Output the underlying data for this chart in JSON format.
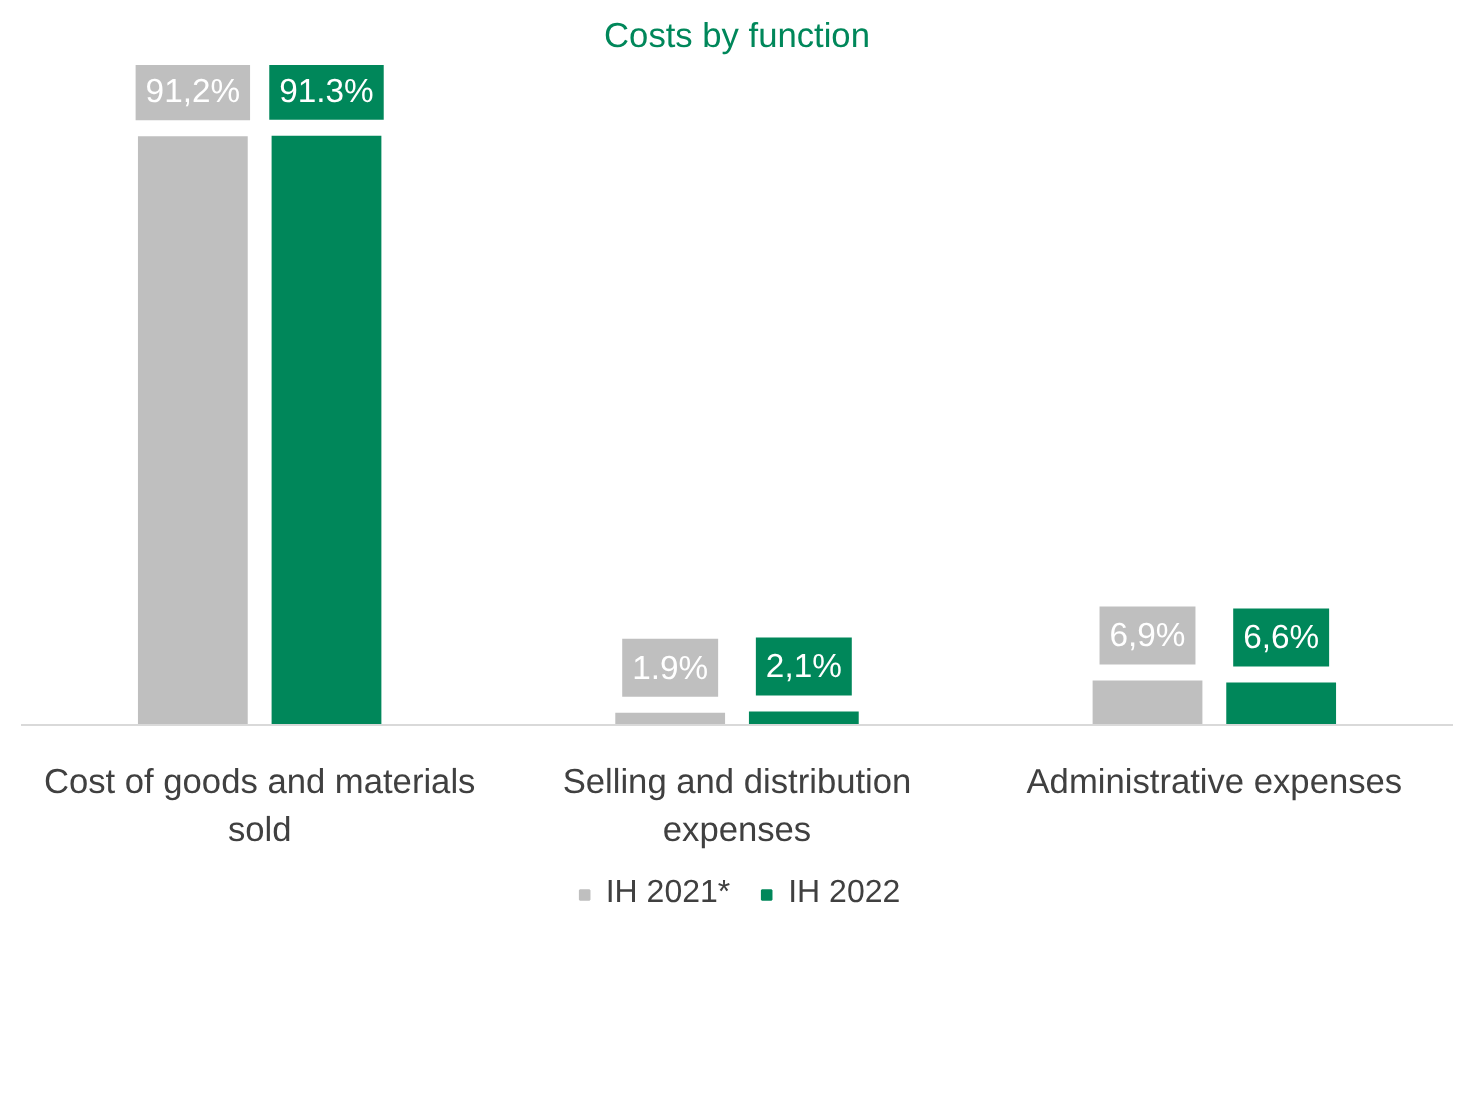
{
  "chart_data": {
    "type": "bar",
    "title": "Costs by function",
    "categories": [
      "Cost of goods and materials sold",
      "Selling and distribution expenses",
      "Administrative expenses"
    ],
    "series": [
      {
        "name": "IH 2021*",
        "color": "#bfbfbf",
        "values": [
          91.2,
          1.9,
          6.9
        ],
        "value_labels": [
          "91,2%",
          "1.9%",
          "6,9%"
        ]
      },
      {
        "name": "IH 2022",
        "color": "#00875a",
        "values": [
          91.3,
          2.1,
          6.6
        ],
        "value_labels": [
          "91.3%",
          "2,1%",
          "6,6%"
        ]
      }
    ],
    "legend": "bottom"
  }
}
